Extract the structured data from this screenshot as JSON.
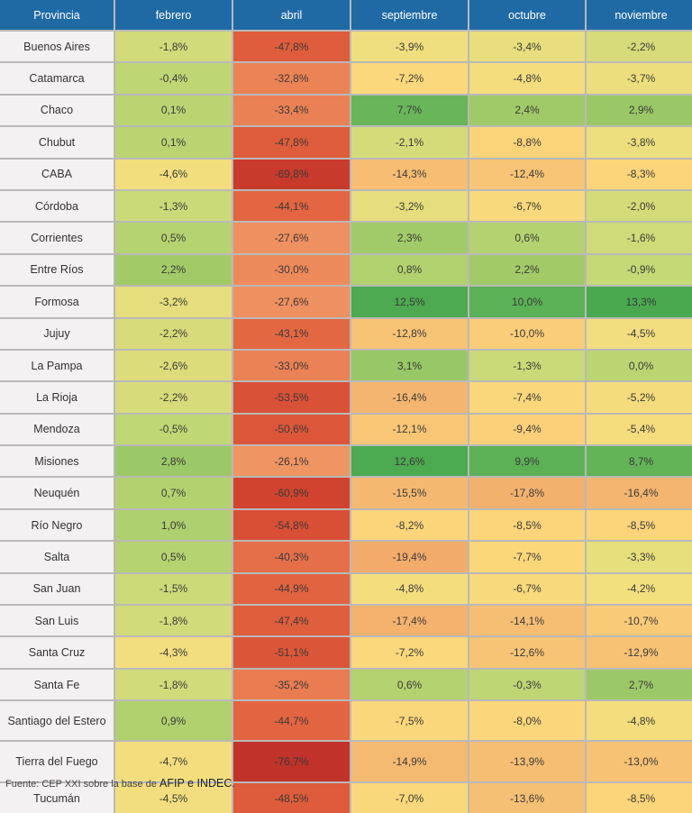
{
  "chart_data": {
    "type": "heatmap",
    "title": "",
    "row_header": "Provincia",
    "columns": [
      "febrero",
      "abril",
      "septiembre",
      "octubre",
      "noviembre"
    ],
    "rows": [
      {
        "provincia": "Buenos Aires",
        "values": [
          "-1,8%",
          "-47,8%",
          "-3,9%",
          "-3,4%",
          "-2,2%"
        ]
      },
      {
        "provincia": "Catamarca",
        "values": [
          "-0,4%",
          "-32,8%",
          "-7,2%",
          "-4,8%",
          "-3,7%"
        ]
      },
      {
        "provincia": "Chaco",
        "values": [
          "0,1%",
          "-33,4%",
          "7,7%",
          "2,4%",
          "2,9%"
        ]
      },
      {
        "provincia": "Chubut",
        "values": [
          "0,1%",
          "-47,8%",
          "-2,1%",
          "-8,8%",
          "-3,8%"
        ]
      },
      {
        "provincia": "CABA",
        "values": [
          "-4,6%",
          "-69,8%",
          "-14,3%",
          "-12,4%",
          "-8,3%"
        ]
      },
      {
        "provincia": "Córdoba",
        "values": [
          "-1,3%",
          "-44,1%",
          "-3,2%",
          "-6,7%",
          "-2,0%"
        ]
      },
      {
        "provincia": "Corrientes",
        "values": [
          "0,5%",
          "-27,6%",
          "2,3%",
          "0,6%",
          "-1,6%"
        ]
      },
      {
        "provincia": "Entre Ríos",
        "values": [
          "2,2%",
          "-30,0%",
          "0,8%",
          "2,2%",
          "-0,9%"
        ]
      },
      {
        "provincia": "Formosa",
        "values": [
          "-3,2%",
          "-27,6%",
          "12,5%",
          "10,0%",
          "13,3%"
        ]
      },
      {
        "provincia": "Jujuy",
        "values": [
          "-2,2%",
          "-43,1%",
          "-12,8%",
          "-10,0%",
          "-4,5%"
        ]
      },
      {
        "provincia": "La Pampa",
        "values": [
          "-2,6%",
          "-33,0%",
          "3,1%",
          "-1,3%",
          "0,0%"
        ]
      },
      {
        "provincia": "La Rioja",
        "values": [
          "-2,2%",
          "-53,5%",
          "-16,4%",
          "-7,4%",
          "-5,2%"
        ]
      },
      {
        "provincia": "Mendoza",
        "values": [
          "-0,5%",
          "-50,6%",
          "-12,1%",
          "-9,4%",
          "-5,4%"
        ]
      },
      {
        "provincia": "Misiones",
        "values": [
          "2,8%",
          "-26,1%",
          "12,6%",
          "9,9%",
          "8,7%"
        ]
      },
      {
        "provincia": "Neuquén",
        "values": [
          "0,7%",
          "-60,9%",
          "-15,5%",
          "-17,8%",
          "-16,4%"
        ]
      },
      {
        "provincia": "Río Negro",
        "values": [
          "1,0%",
          "-54,8%",
          "-8,2%",
          "-8,5%",
          "-8,5%"
        ]
      },
      {
        "provincia": "Salta",
        "values": [
          "0,5%",
          "-40,3%",
          "-19,4%",
          "-7,7%",
          "-3,3%"
        ]
      },
      {
        "provincia": "San Juan",
        "values": [
          "-1,5%",
          "-44,9%",
          "-4,8%",
          "-6,7%",
          "-4,2%"
        ]
      },
      {
        "provincia": "San Luis",
        "values": [
          "-1,8%",
          "-47,4%",
          "-17,4%",
          "-14,1%",
          "-10,7%"
        ]
      },
      {
        "provincia": "Santa Cruz",
        "values": [
          "-4,3%",
          "-51,1%",
          "-7,2%",
          "-12,6%",
          "-12,9%"
        ]
      },
      {
        "provincia": "Santa Fe",
        "values": [
          "-1,8%",
          "-35,2%",
          "0,6%",
          "-0,3%",
          "2,7%"
        ]
      },
      {
        "provincia": "Santiago del Estero",
        "values": [
          "0,9%",
          "-44,7%",
          "-7,5%",
          "-8,0%",
          "-4,8%"
        ]
      },
      {
        "provincia": "Tierra del Fuego",
        "values": [
          "-4,7%",
          "-76,7%",
          "-14,9%",
          "-13,9%",
          "-13,0%"
        ]
      },
      {
        "provincia": "Tucumán",
        "values": [
          "-4,5%",
          "-48,5%",
          "-7,0%",
          "-13,6%",
          "-8,5%"
        ]
      }
    ],
    "color_scale": [
      [
        13,
        "#4aa94f"
      ],
      [
        7,
        "#6cb85a"
      ],
      [
        2,
        "#a4cc69"
      ],
      [
        -1,
        "#c6d977"
      ],
      [
        -4,
        "#f1df7e"
      ],
      [
        -8,
        "#fcd67a"
      ],
      [
        -15,
        "#f5ba72"
      ],
      [
        -28,
        "#ee8f5e"
      ],
      [
        -45,
        "#e2633f"
      ],
      [
        -60,
        "#d2442f"
      ],
      [
        -77,
        "#c0322a"
      ]
    ],
    "colors": {
      "header_bg": "#1f6aa5",
      "province_bg": "#f3f1f1"
    }
  },
  "source": {
    "prefix": "Fuente: CEP XXI sobre la base de ",
    "emphasis": "AFIP e INDEC."
  }
}
